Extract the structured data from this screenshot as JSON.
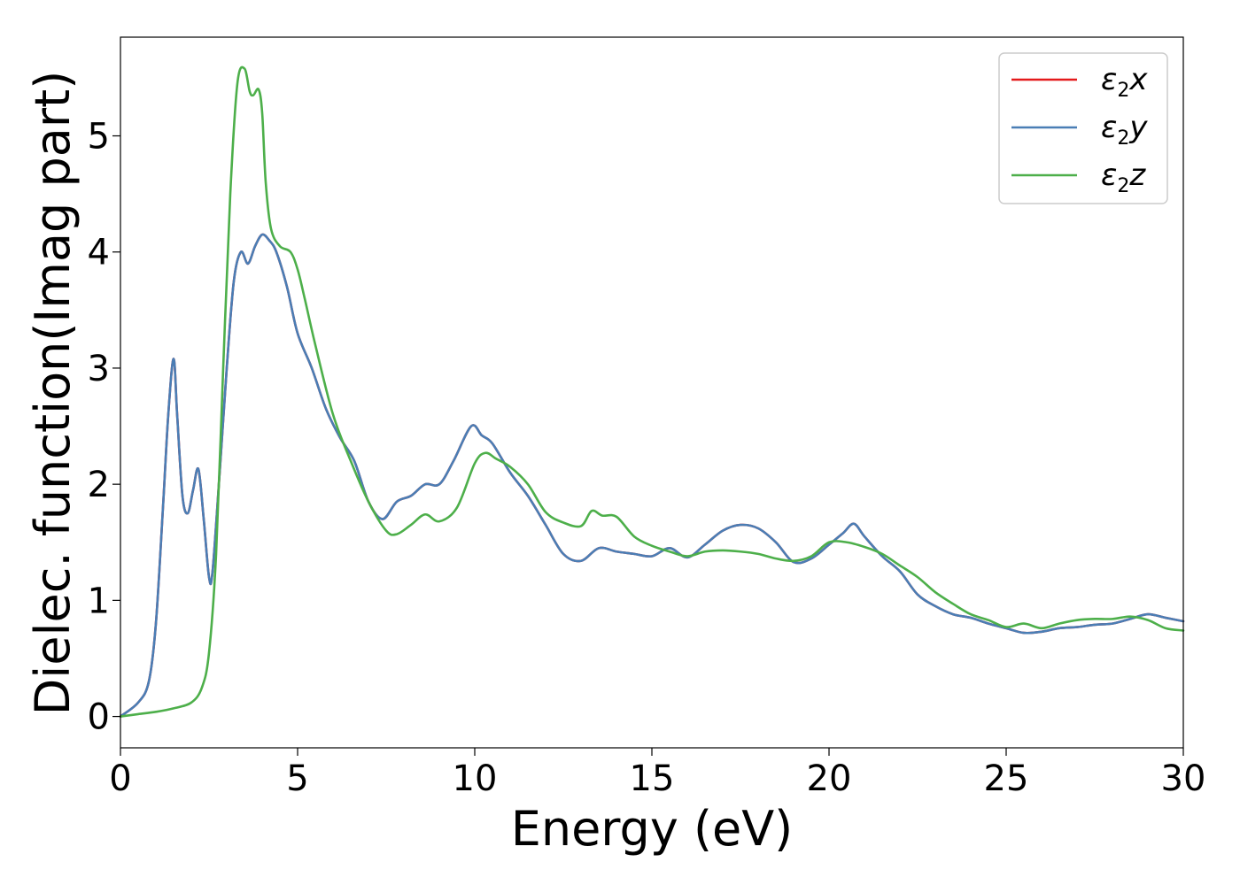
{
  "chart_data": {
    "type": "line",
    "title": "",
    "xlabel": "Energy (eV)",
    "ylabel": "Dielec. function(Imag part)",
    "xlim": [
      0,
      30
    ],
    "ylim": [
      -0.27,
      5.85
    ],
    "xticks": [
      0,
      5,
      10,
      15,
      20,
      25,
      30
    ],
    "yticks": [
      0,
      1,
      2,
      3,
      4,
      5
    ],
    "xtick_labels": [
      "0",
      "5",
      "10",
      "15",
      "20",
      "25",
      "30"
    ],
    "ytick_labels": [
      "0",
      "1",
      "2",
      "3",
      "4",
      "5"
    ],
    "grid": false,
    "legend_position": "top-right",
    "series": [
      {
        "name": "ε2x",
        "legend_base": "ε",
        "legend_sub": "2",
        "legend_tail": "x",
        "color": "#e41a1c",
        "x": [
          0,
          0.5,
          0.8,
          1.0,
          1.2,
          1.35,
          1.5,
          1.6,
          1.75,
          1.9,
          2.05,
          2.2,
          2.35,
          2.5,
          2.6,
          2.8,
          3.0,
          3.2,
          3.4,
          3.6,
          3.8,
          4.0,
          4.2,
          4.4,
          4.7,
          5.0,
          5.4,
          5.8,
          6.2,
          6.6,
          7.0,
          7.4,
          7.8,
          8.2,
          8.6,
          9.0,
          9.4,
          9.9,
          10.2,
          10.5,
          11.0,
          11.5,
          12.0,
          12.5,
          13.0,
          13.5,
          14.0,
          14.5,
          15.0,
          15.5,
          16.0,
          16.5,
          17.0,
          17.5,
          18.0,
          18.5,
          19.0,
          19.5,
          20.0,
          20.4,
          20.7,
          21.0,
          21.5,
          22.0,
          22.5,
          23.0,
          23.5,
          24.0,
          24.5,
          25.0,
          25.5,
          26.0,
          26.5,
          27.0,
          27.5,
          28.0,
          28.5,
          29.0,
          29.5,
          30.0
        ],
        "y": [
          0,
          0.12,
          0.3,
          0.8,
          1.8,
          2.6,
          3.08,
          2.6,
          1.9,
          1.75,
          1.95,
          2.13,
          1.7,
          1.2,
          1.25,
          2.1,
          3.0,
          3.75,
          4.0,
          3.9,
          4.05,
          4.15,
          4.1,
          4.0,
          3.7,
          3.3,
          3.0,
          2.65,
          2.4,
          2.2,
          1.85,
          1.7,
          1.85,
          1.9,
          2.0,
          2.0,
          2.2,
          2.5,
          2.42,
          2.35,
          2.1,
          1.9,
          1.65,
          1.4,
          1.34,
          1.45,
          1.42,
          1.4,
          1.38,
          1.45,
          1.37,
          1.48,
          1.6,
          1.65,
          1.62,
          1.5,
          1.33,
          1.36,
          1.48,
          1.58,
          1.66,
          1.55,
          1.38,
          1.25,
          1.05,
          0.95,
          0.88,
          0.85,
          0.8,
          0.76,
          0.72,
          0.73,
          0.76,
          0.77,
          0.79,
          0.8,
          0.84,
          0.88,
          0.85,
          0.82
        ]
      },
      {
        "name": "ε2y",
        "legend_base": "ε",
        "legend_sub": "2",
        "legend_tail": "y",
        "color": "#4a7eb5",
        "x": [
          0,
          0.5,
          0.8,
          1.0,
          1.2,
          1.35,
          1.5,
          1.6,
          1.75,
          1.9,
          2.05,
          2.2,
          2.35,
          2.5,
          2.6,
          2.8,
          3.0,
          3.2,
          3.4,
          3.6,
          3.8,
          4.0,
          4.2,
          4.4,
          4.7,
          5.0,
          5.4,
          5.8,
          6.2,
          6.6,
          7.0,
          7.4,
          7.8,
          8.2,
          8.6,
          9.0,
          9.4,
          9.9,
          10.2,
          10.5,
          11.0,
          11.5,
          12.0,
          12.5,
          13.0,
          13.5,
          14.0,
          14.5,
          15.0,
          15.5,
          16.0,
          16.5,
          17.0,
          17.5,
          18.0,
          18.5,
          19.0,
          19.5,
          20.0,
          20.4,
          20.7,
          21.0,
          21.5,
          22.0,
          22.5,
          23.0,
          23.5,
          24.0,
          24.5,
          25.0,
          25.5,
          26.0,
          26.5,
          27.0,
          27.5,
          28.0,
          28.5,
          29.0,
          29.5,
          30.0
        ],
        "y": [
          0,
          0.12,
          0.3,
          0.8,
          1.8,
          2.6,
          3.08,
          2.6,
          1.9,
          1.75,
          1.95,
          2.13,
          1.7,
          1.2,
          1.25,
          2.1,
          3.0,
          3.75,
          4.0,
          3.9,
          4.05,
          4.15,
          4.1,
          4.0,
          3.7,
          3.3,
          3.0,
          2.65,
          2.4,
          2.2,
          1.85,
          1.7,
          1.85,
          1.9,
          2.0,
          2.0,
          2.2,
          2.5,
          2.42,
          2.35,
          2.1,
          1.9,
          1.65,
          1.4,
          1.34,
          1.45,
          1.42,
          1.4,
          1.38,
          1.45,
          1.37,
          1.48,
          1.6,
          1.65,
          1.62,
          1.5,
          1.33,
          1.36,
          1.48,
          1.58,
          1.66,
          1.55,
          1.38,
          1.25,
          1.05,
          0.95,
          0.88,
          0.85,
          0.8,
          0.76,
          0.72,
          0.73,
          0.76,
          0.77,
          0.79,
          0.8,
          0.84,
          0.88,
          0.85,
          0.82
        ]
      },
      {
        "name": "ε2z",
        "legend_base": "ε",
        "legend_sub": "2",
        "legend_tail": "z",
        "color": "#4daf4a",
        "x": [
          0,
          0.5,
          1.0,
          1.5,
          2.0,
          2.3,
          2.5,
          2.7,
          2.9,
          3.1,
          3.3,
          3.5,
          3.65,
          3.75,
          3.9,
          4.0,
          4.1,
          4.25,
          4.5,
          4.8,
          5.0,
          5.2,
          5.5,
          6.0,
          6.5,
          7.0,
          7.5,
          7.8,
          8.2,
          8.6,
          9.0,
          9.5,
          10.0,
          10.3,
          10.6,
          11.0,
          11.5,
          12.0,
          12.5,
          13.0,
          13.3,
          13.6,
          14.0,
          14.5,
          15.0,
          15.5,
          16.0,
          16.5,
          17.0,
          17.5,
          18.0,
          18.5,
          19.0,
          19.5,
          20.0,
          20.5,
          21.0,
          21.5,
          22.0,
          22.5,
          23.0,
          23.5,
          24.0,
          24.5,
          25.0,
          25.5,
          26.0,
          26.5,
          27.0,
          27.5,
          28.0,
          28.5,
          29.0,
          29.5,
          30.0
        ],
        "y": [
          0,
          0.02,
          0.04,
          0.07,
          0.12,
          0.25,
          0.55,
          1.4,
          3.0,
          4.5,
          5.45,
          5.58,
          5.38,
          5.35,
          5.4,
          5.2,
          4.6,
          4.2,
          4.05,
          4.0,
          3.85,
          3.6,
          3.2,
          2.6,
          2.2,
          1.85,
          1.6,
          1.57,
          1.65,
          1.74,
          1.68,
          1.8,
          2.18,
          2.27,
          2.22,
          2.15,
          2.0,
          1.76,
          1.67,
          1.64,
          1.77,
          1.73,
          1.72,
          1.55,
          1.47,
          1.42,
          1.38,
          1.42,
          1.43,
          1.42,
          1.4,
          1.36,
          1.34,
          1.38,
          1.5,
          1.5,
          1.46,
          1.4,
          1.3,
          1.2,
          1.07,
          0.97,
          0.88,
          0.83,
          0.77,
          0.8,
          0.76,
          0.8,
          0.83,
          0.84,
          0.84,
          0.86,
          0.83,
          0.76,
          0.74
        ]
      }
    ]
  }
}
